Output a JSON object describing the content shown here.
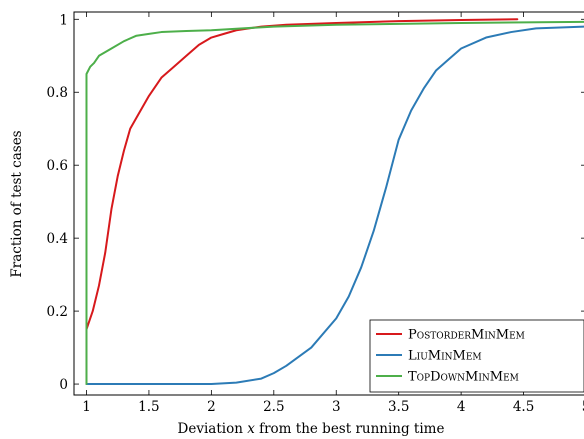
{
  "chart_data": {
    "type": "line",
    "title": "",
    "xlabel": "Deviation x from the best running time",
    "xlabel_parts": {
      "before": "Deviation ",
      "var": "x",
      "after": " from the best running time"
    },
    "ylabel": "Fraction of test cases",
    "xlim": [
      0.9,
      5.0
    ],
    "ylim": [
      -0.03,
      1.02
    ],
    "xticks": [
      1,
      1.5,
      2,
      2.5,
      3,
      3.5,
      4,
      4.5,
      5
    ],
    "xtick_labels": [
      "1",
      "1.5",
      "2",
      "2.5",
      "3",
      "3.5",
      "4",
      "4.5",
      "5"
    ],
    "yticks": [
      0,
      0.2,
      0.4,
      0.6,
      0.8,
      1
    ],
    "ytick_labels": [
      "0",
      "0.2",
      "0.4",
      "0.6",
      "0.8",
      "1"
    ],
    "grid": false,
    "legend_position": "bottom-right",
    "series": [
      {
        "name": "PostorderMinMem",
        "color": "#d7191c",
        "x": [
          1.0,
          1.0,
          1.05,
          1.1,
          1.15,
          1.2,
          1.25,
          1.3,
          1.35,
          1.4,
          1.5,
          1.6,
          1.7,
          1.8,
          1.9,
          2.0,
          2.1,
          2.2,
          2.4,
          2.6,
          3.0,
          3.5,
          4.0,
          4.45
        ],
        "y": [
          0.0,
          0.15,
          0.2,
          0.27,
          0.36,
          0.48,
          0.57,
          0.64,
          0.7,
          0.73,
          0.79,
          0.84,
          0.87,
          0.9,
          0.93,
          0.95,
          0.96,
          0.97,
          0.98,
          0.985,
          0.99,
          0.995,
          0.998,
          1.0
        ]
      },
      {
        "name": "LiuMinMem",
        "color": "#2c7bb6",
        "x": [
          1.0,
          2.0,
          2.2,
          2.4,
          2.5,
          2.6,
          2.8,
          3.0,
          3.1,
          3.2,
          3.3,
          3.4,
          3.5,
          3.6,
          3.7,
          3.8,
          3.9,
          4.0,
          4.2,
          4.4,
          4.6,
          5.0
        ],
        "y": [
          0.0,
          0.0,
          0.004,
          0.015,
          0.03,
          0.05,
          0.1,
          0.18,
          0.24,
          0.32,
          0.42,
          0.54,
          0.67,
          0.75,
          0.81,
          0.86,
          0.89,
          0.92,
          0.95,
          0.965,
          0.975,
          0.98
        ]
      },
      {
        "name": "TopDownMinMem",
        "color": "#4daf4a",
        "x": [
          1.0,
          1.0,
          1.03,
          1.06,
          1.1,
          1.15,
          1.2,
          1.3,
          1.4,
          1.5,
          1.6,
          1.8,
          2.0,
          2.5,
          3.0,
          4.0,
          5.0
        ],
        "y": [
          0.0,
          0.85,
          0.87,
          0.88,
          0.9,
          0.91,
          0.92,
          0.94,
          0.955,
          0.96,
          0.965,
          0.968,
          0.97,
          0.98,
          0.985,
          0.99,
          0.993
        ]
      }
    ]
  }
}
